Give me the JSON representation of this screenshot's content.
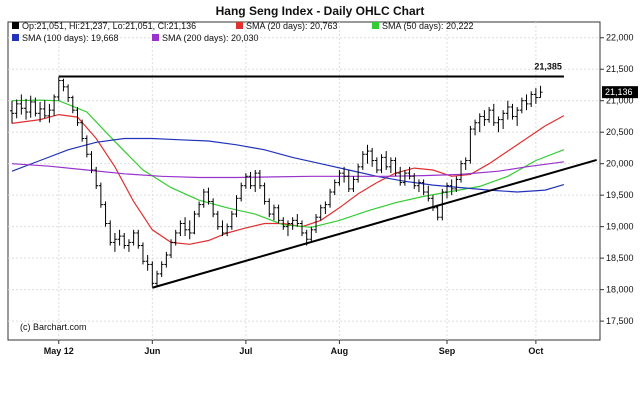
{
  "chart_data": {
    "type": "ohlc",
    "title": "Hang Seng Index - Daily OHLC Chart",
    "credit": "(c) Barchart.com",
    "legend": {
      "ohlc": {
        "label": "Op:21,051, Hi:21,237, Lo:21,051, Cl:21,136",
        "color": "#000000"
      },
      "sma": [
        {
          "label": "SMA (20 days): 20,763",
          "color": "#e03030"
        },
        {
          "label": "SMA (50 days): 20,222",
          "color": "#33cc33"
        },
        {
          "label": "SMA (100 days): 19,668",
          "color": "#2233bb"
        },
        {
          "label": "SMA (200 days): 20,030",
          "color": "#9933cc"
        }
      ]
    },
    "ylim": [
      17200,
      22250
    ],
    "yticks": [
      {
        "value": 22000,
        "label": "22,000"
      },
      {
        "value": 21500,
        "label": "21,500"
      },
      {
        "value": 21000,
        "label": "21,000"
      },
      {
        "value": 20500,
        "label": "20,500"
      },
      {
        "value": 20000,
        "label": "20,000"
      },
      {
        "value": 19500,
        "label": "19,500"
      },
      {
        "value": 19000,
        "label": "19,000"
      },
      {
        "value": 18500,
        "label": "18,500"
      },
      {
        "value": 18000,
        "label": "18,000"
      },
      {
        "value": 17500,
        "label": "17,500"
      }
    ],
    "xticks": [
      {
        "index": 10,
        "label": "May 12"
      },
      {
        "index": 30,
        "label": "Jun"
      },
      {
        "index": 50,
        "label": "Jul"
      },
      {
        "index": 70,
        "label": "Aug"
      },
      {
        "index": 93,
        "label": "Sep"
      },
      {
        "index": 112,
        "label": "Oct"
      }
    ],
    "n_slots": 125,
    "last_price": {
      "value": 21136,
      "label": "21,136"
    },
    "ohlc": [
      [
        20840,
        21000,
        20640,
        20800
      ],
      [
        20800,
        21020,
        20720,
        20950
      ],
      [
        20950,
        21100,
        20780,
        20880
      ],
      [
        20880,
        21030,
        20700,
        20820
      ],
      [
        20820,
        21080,
        20730,
        20980
      ],
      [
        20980,
        21050,
        20750,
        20800
      ],
      [
        20800,
        20980,
        20660,
        20870
      ],
      [
        20870,
        21010,
        20720,
        20760
      ],
      [
        20760,
        20950,
        20650,
        20850
      ],
      [
        20850,
        21100,
        20760,
        21060
      ],
      [
        21060,
        21380,
        21000,
        21320
      ],
      [
        21320,
        21350,
        21150,
        21220
      ],
      [
        21220,
        21260,
        20980,
        21050
      ],
      [
        21050,
        21080,
        20800,
        20850
      ],
      [
        20850,
        20900,
        20600,
        20650
      ],
      [
        20650,
        20700,
        20350,
        20400
      ],
      [
        20400,
        20450,
        20100,
        20150
      ],
      [
        20150,
        20200,
        19850,
        19900
      ],
      [
        19900,
        19950,
        19600,
        19650
      ],
      [
        19650,
        19700,
        19300,
        19350
      ],
      [
        19350,
        19400,
        19000,
        19050
      ],
      [
        19050,
        19100,
        18700,
        18750
      ],
      [
        18750,
        18900,
        18600,
        18800
      ],
      [
        18800,
        18950,
        18700,
        18850
      ],
      [
        18850,
        18900,
        18650,
        18700
      ],
      [
        18700,
        18800,
        18600,
        18750
      ],
      [
        18750,
        18950,
        18700,
        18900
      ],
      [
        18900,
        18950,
        18650,
        18700
      ],
      [
        18700,
        18750,
        18400,
        18450
      ],
      [
        18450,
        18550,
        18300,
        18400
      ],
      [
        18400,
        18450,
        18050,
        18100
      ],
      [
        18100,
        18300,
        18050,
        18250
      ],
      [
        18250,
        18450,
        18200,
        18400
      ],
      [
        18400,
        18600,
        18350,
        18550
      ],
      [
        18550,
        18800,
        18500,
        18750
      ],
      [
        18750,
        18950,
        18700,
        18900
      ],
      [
        18900,
        19100,
        18850,
        19050
      ],
      [
        19050,
        19150,
        18850,
        18950
      ],
      [
        18950,
        19100,
        18800,
        18900
      ],
      [
        18900,
        19250,
        18880,
        19200
      ],
      [
        19200,
        19400,
        19150,
        19350
      ],
      [
        19350,
        19600,
        19300,
        19550
      ],
      [
        19550,
        19620,
        19350,
        19400
      ],
      [
        19400,
        19450,
        19150,
        19200
      ],
      [
        19200,
        19250,
        18950,
        19000
      ],
      [
        19000,
        19100,
        18850,
        18900
      ],
      [
        18900,
        19050,
        18850,
        19000
      ],
      [
        19000,
        19250,
        18950,
        19200
      ],
      [
        19200,
        19500,
        19150,
        19450
      ],
      [
        19450,
        19700,
        19400,
        19650
      ],
      [
        19650,
        19850,
        19600,
        19800
      ],
      [
        19800,
        19870,
        19600,
        19650
      ],
      [
        19650,
        19900,
        19550,
        19850
      ],
      [
        19850,
        19900,
        19600,
        19650
      ],
      [
        19650,
        19700,
        19350,
        19400
      ],
      [
        19400,
        19450,
        19150,
        19200
      ],
      [
        19200,
        19350,
        19100,
        19300
      ],
      [
        19300,
        19350,
        19050,
        19100
      ],
      [
        19100,
        19150,
        18950,
        19000
      ],
      [
        19000,
        19100,
        18850,
        19050
      ],
      [
        19050,
        19150,
        18950,
        19100
      ],
      [
        19100,
        19200,
        19000,
        19050
      ],
      [
        19050,
        19100,
        18850,
        18900
      ],
      [
        18900,
        18950,
        18700,
        18800
      ],
      [
        18800,
        19000,
        18750,
        18950
      ],
      [
        18950,
        19200,
        18900,
        19150
      ],
      [
        19150,
        19350,
        19100,
        19300
      ],
      [
        19300,
        19400,
        19200,
        19350
      ],
      [
        19350,
        19600,
        19300,
        19550
      ],
      [
        19550,
        19750,
        19500,
        19700
      ],
      [
        19700,
        19900,
        19650,
        19850
      ],
      [
        19850,
        19950,
        19700,
        19800
      ],
      [
        19800,
        19900,
        19550,
        19600
      ],
      [
        19600,
        19800,
        19550,
        19750
      ],
      [
        19750,
        20000,
        19700,
        19950
      ],
      [
        19950,
        20200,
        19900,
        20150
      ],
      [
        20150,
        20300,
        20000,
        20200
      ],
      [
        20200,
        20250,
        19950,
        20050
      ],
      [
        20050,
        20100,
        19850,
        19900
      ],
      [
        19900,
        20150,
        19850,
        20100
      ],
      [
        20100,
        20200,
        19900,
        19950
      ],
      [
        19950,
        20100,
        19850,
        20050
      ],
      [
        20050,
        20100,
        19800,
        19850
      ],
      [
        19850,
        19950,
        19650,
        19700
      ],
      [
        19700,
        19900,
        19650,
        19850
      ],
      [
        19850,
        19950,
        19750,
        19800
      ],
      [
        19800,
        19850,
        19600,
        19650
      ],
      [
        19650,
        19750,
        19550,
        19700
      ],
      [
        19700,
        19750,
        19500,
        19550
      ],
      [
        19550,
        19650,
        19400,
        19450
      ],
      [
        19450,
        19500,
        19250,
        19300
      ],
      [
        19300,
        19350,
        19100,
        19150
      ],
      [
        19150,
        19600,
        19100,
        19550
      ],
      [
        19550,
        19700,
        19450,
        19650
      ],
      [
        19650,
        19750,
        19500,
        19600
      ],
      [
        19600,
        19800,
        19550,
        19750
      ],
      [
        19750,
        20050,
        19700,
        20000
      ],
      [
        20000,
        20100,
        19900,
        20050
      ],
      [
        20050,
        20600,
        20000,
        20550
      ],
      [
        20550,
        20700,
        20450,
        20650
      ],
      [
        20650,
        20800,
        20500,
        20750
      ],
      [
        20750,
        20850,
        20600,
        20700
      ],
      [
        20700,
        20900,
        20650,
        20850
      ],
      [
        20850,
        20950,
        20600,
        20650
      ],
      [
        20650,
        20750,
        20500,
        20700
      ],
      [
        20700,
        20850,
        20550,
        20800
      ],
      [
        20800,
        21000,
        20700,
        20900
      ],
      [
        20900,
        20950,
        20700,
        20750
      ],
      [
        20750,
        20900,
        20600,
        20850
      ],
      [
        20850,
        21050,
        20800,
        21000
      ],
      [
        21000,
        21100,
        20850,
        20950
      ],
      [
        20950,
        21150,
        20900,
        21100
      ],
      [
        21100,
        21200,
        20950,
        21050
      ],
      [
        21050,
        21237,
        21051,
        21136
      ]
    ],
    "sma": [
      {
        "name": "SMA (20 days)",
        "color": "#e03030",
        "points": [
          [
            0,
            20640
          ],
          [
            6,
            20700
          ],
          [
            10,
            20780
          ],
          [
            14,
            20740
          ],
          [
            18,
            20400
          ],
          [
            22,
            19950
          ],
          [
            26,
            19400
          ],
          [
            30,
            18950
          ],
          [
            34,
            18750
          ],
          [
            38,
            18720
          ],
          [
            42,
            18780
          ],
          [
            46,
            18900
          ],
          [
            50,
            18980
          ],
          [
            54,
            19050
          ],
          [
            58,
            19050
          ],
          [
            62,
            19000
          ],
          [
            66,
            19100
          ],
          [
            70,
            19300
          ],
          [
            74,
            19520
          ],
          [
            78,
            19700
          ],
          [
            82,
            19850
          ],
          [
            86,
            19930
          ],
          [
            90,
            19900
          ],
          [
            94,
            19800
          ],
          [
            98,
            19830
          ],
          [
            102,
            20000
          ],
          [
            106,
            20200
          ],
          [
            110,
            20400
          ],
          [
            114,
            20600
          ],
          [
            118,
            20763
          ]
        ]
      },
      {
        "name": "SMA (50 days)",
        "color": "#33cc33",
        "points": [
          [
            0,
            21000
          ],
          [
            6,
            21010
          ],
          [
            10,
            21000
          ],
          [
            16,
            20820
          ],
          [
            22,
            20350
          ],
          [
            28,
            19900
          ],
          [
            34,
            19620
          ],
          [
            40,
            19420
          ],
          [
            46,
            19300
          ],
          [
            52,
            19200
          ],
          [
            58,
            19030
          ],
          [
            64,
            18990
          ],
          [
            70,
            19100
          ],
          [
            76,
            19250
          ],
          [
            82,
            19380
          ],
          [
            88,
            19480
          ],
          [
            94,
            19560
          ],
          [
            100,
            19640
          ],
          [
            106,
            19800
          ],
          [
            112,
            20050
          ],
          [
            118,
            20222
          ]
        ]
      },
      {
        "name": "SMA (100 days)",
        "color": "#2233bb",
        "points": [
          [
            0,
            19880
          ],
          [
            6,
            20050
          ],
          [
            12,
            20220
          ],
          [
            18,
            20340
          ],
          [
            24,
            20400
          ],
          [
            30,
            20400
          ],
          [
            36,
            20380
          ],
          [
            42,
            20360
          ],
          [
            48,
            20300
          ],
          [
            54,
            20220
          ],
          [
            60,
            20100
          ],
          [
            66,
            20000
          ],
          [
            72,
            19900
          ],
          [
            78,
            19800
          ],
          [
            84,
            19720
          ],
          [
            90,
            19660
          ],
          [
            96,
            19620
          ],
          [
            102,
            19580
          ],
          [
            108,
            19550
          ],
          [
            114,
            19580
          ],
          [
            118,
            19668
          ]
        ]
      },
      {
        "name": "SMA (200 days)",
        "color": "#9933cc",
        "points": [
          [
            0,
            20000
          ],
          [
            8,
            19960
          ],
          [
            16,
            19900
          ],
          [
            24,
            19840
          ],
          [
            32,
            19800
          ],
          [
            40,
            19780
          ],
          [
            48,
            19780
          ],
          [
            56,
            19790
          ],
          [
            64,
            19800
          ],
          [
            72,
            19800
          ],
          [
            80,
            19800
          ],
          [
            88,
            19810
          ],
          [
            96,
            19830
          ],
          [
            104,
            19880
          ],
          [
            110,
            19950
          ],
          [
            118,
            20030
          ]
        ]
      }
    ],
    "resistance": {
      "value": 21385,
      "label": "21,385",
      "from_index": 10,
      "to_index": 118
    },
    "support": {
      "from": [
        30,
        18030
      ],
      "to": [
        125,
        20060
      ]
    }
  }
}
